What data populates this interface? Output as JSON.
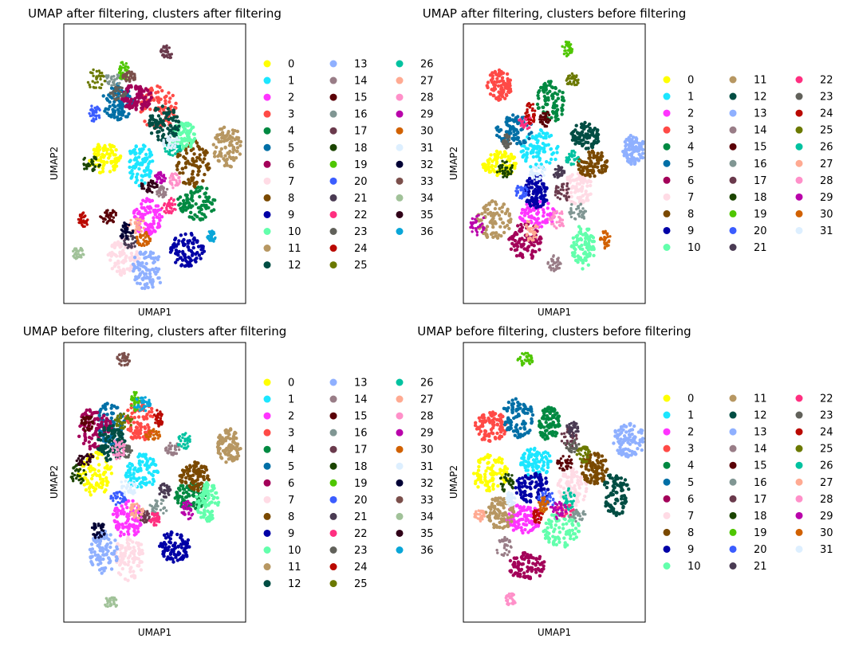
{
  "palette": [
    "#FFFF00",
    "#1CE6FF",
    "#FF34FF",
    "#FF4A46",
    "#008941",
    "#006FA6",
    "#A30059",
    "#FFDBE5",
    "#7A4900",
    "#0000A6",
    "#63FFAC",
    "#B79762",
    "#004D43",
    "#8FB0FF",
    "#997D87",
    "#5A0007",
    "#809693",
    "#6A3A4C",
    "#1B4400",
    "#4FC601",
    "#3B5DFF",
    "#4A3B53",
    "#FF2F80",
    "#61615A",
    "#BA0900",
    "#6B7900",
    "#00C2A0",
    "#FFAA92",
    "#FF90C9",
    "#B903AA",
    "#D16100",
    "#DDEFFF",
    "#000035",
    "#7B4F4B",
    "#A1C299",
    "#300018",
    "#0AA6D8"
  ],
  "chart_data": [
    {
      "type": "scatter",
      "title": "UMAP after filtering, clusters after filtering",
      "xlabel": "UMAP1",
      "ylabel": "UMAP2",
      "legend_entries": [
        "0",
        "1",
        "2",
        "3",
        "4",
        "5",
        "6",
        "7",
        "8",
        "9",
        "10",
        "11",
        "12",
        "13",
        "14",
        "15",
        "16",
        "17",
        "18",
        "19",
        "20",
        "21",
        "22",
        "23",
        "24",
        "25",
        "26",
        "27",
        "28",
        "29",
        "30",
        "31",
        "32",
        "33",
        "34",
        "35",
        "36"
      ],
      "legend_columns": 3,
      "legend_placement": "right",
      "clusters": [
        {
          "label": "0",
          "x": 0.22,
          "y": 0.52
        },
        {
          "label": "1",
          "x": 0.42,
          "y": 0.5
        },
        {
          "label": "2",
          "x": 0.46,
          "y": 0.31
        },
        {
          "label": "3",
          "x": 0.52,
          "y": 0.7
        },
        {
          "label": "4",
          "x": 0.73,
          "y": 0.36
        },
        {
          "label": "5",
          "x": 0.3,
          "y": 0.72
        },
        {
          "label": "6",
          "x": 0.4,
          "y": 0.74
        },
        {
          "label": "7",
          "x": 0.33,
          "y": 0.17
        },
        {
          "label": "8",
          "x": 0.71,
          "y": 0.5
        },
        {
          "label": "9",
          "x": 0.68,
          "y": 0.19
        },
        {
          "label": "10",
          "x": 0.66,
          "y": 0.6
        },
        {
          "label": "11",
          "x": 0.9,
          "y": 0.56
        },
        {
          "label": "12",
          "x": 0.55,
          "y": 0.64
        },
        {
          "label": "13",
          "x": 0.46,
          "y": 0.12
        },
        {
          "label": "14",
          "x": 0.54,
          "y": 0.4
        },
        {
          "label": "15",
          "x": 0.25,
          "y": 0.31
        },
        {
          "label": "16",
          "x": 0.27,
          "y": 0.8
        },
        {
          "label": "17",
          "x": 0.57,
          "y": 0.9
        },
        {
          "label": "18",
          "x": 0.15,
          "y": 0.5
        },
        {
          "label": "19",
          "x": 0.33,
          "y": 0.83
        },
        {
          "label": "20",
          "x": 0.17,
          "y": 0.68
        },
        {
          "label": "21",
          "x": 0.37,
          "y": 0.22
        },
        {
          "label": "22",
          "x": 0.58,
          "y": 0.35
        },
        {
          "label": "23",
          "x": 0.3,
          "y": 0.75
        },
        {
          "label": "24",
          "x": 0.11,
          "y": 0.3
        },
        {
          "label": "25",
          "x": 0.18,
          "y": 0.8
        },
        {
          "label": "26",
          "x": 0.6,
          "y": 0.55
        },
        {
          "label": "27",
          "x": 0.4,
          "y": 0.28
        },
        {
          "label": "28",
          "x": 0.61,
          "y": 0.44
        },
        {
          "label": "29",
          "x": 0.53,
          "y": 0.45
        },
        {
          "label": "30",
          "x": 0.44,
          "y": 0.23
        },
        {
          "label": "31",
          "x": 0.59,
          "y": 0.58
        },
        {
          "label": "32",
          "x": 0.34,
          "y": 0.26
        },
        {
          "label": "33",
          "x": 0.36,
          "y": 0.81
        },
        {
          "label": "34",
          "x": 0.08,
          "y": 0.18
        },
        {
          "label": "35",
          "x": 0.47,
          "y": 0.42
        },
        {
          "label": "36",
          "x": 0.81,
          "y": 0.24
        }
      ]
    },
    {
      "type": "scatter",
      "title": "UMAP after filtering, clusters before filtering",
      "xlabel": "UMAP1",
      "ylabel": "UMAP2",
      "legend_entries": [
        "0",
        "1",
        "2",
        "3",
        "4",
        "5",
        "6",
        "7",
        "8",
        "9",
        "10",
        "11",
        "12",
        "13",
        "14",
        "15",
        "16",
        "17",
        "18",
        "19",
        "20",
        "21",
        "22",
        "23",
        "24",
        "25",
        "26",
        "27",
        "28",
        "29",
        "30",
        "31"
      ],
      "legend_columns": 3,
      "legend_placement": "right",
      "clusters": [
        {
          "label": "0",
          "x": 0.2,
          "y": 0.5
        },
        {
          "label": "1",
          "x": 0.42,
          "y": 0.55
        },
        {
          "label": "2",
          "x": 0.41,
          "y": 0.32
        },
        {
          "label": "3",
          "x": 0.2,
          "y": 0.78
        },
        {
          "label": "4",
          "x": 0.48,
          "y": 0.72
        },
        {
          "label": "5",
          "x": 0.28,
          "y": 0.62
        },
        {
          "label": "6",
          "x": 0.34,
          "y": 0.22
        },
        {
          "label": "7",
          "x": 0.63,
          "y": 0.41
        },
        {
          "label": "8",
          "x": 0.71,
          "y": 0.5
        },
        {
          "label": "9",
          "x": 0.4,
          "y": 0.4
        },
        {
          "label": "10",
          "x": 0.66,
          "y": 0.2
        },
        {
          "label": "11",
          "x": 0.17,
          "y": 0.3
        },
        {
          "label": "12",
          "x": 0.67,
          "y": 0.6
        },
        {
          "label": "13",
          "x": 0.94,
          "y": 0.55
        },
        {
          "label": "14",
          "x": 0.5,
          "y": 0.14
        },
        {
          "label": "15",
          "x": 0.45,
          "y": 0.66
        },
        {
          "label": "16",
          "x": 0.63,
          "y": 0.33
        },
        {
          "label": "17",
          "x": 0.55,
          "y": 0.4
        },
        {
          "label": "18",
          "x": 0.23,
          "y": 0.48
        },
        {
          "label": "19",
          "x": 0.57,
          "y": 0.91
        },
        {
          "label": "20",
          "x": 0.32,
          "y": 0.4
        },
        {
          "label": "21",
          "x": 0.53,
          "y": 0.47
        },
        {
          "label": "22",
          "x": 0.34,
          "y": 0.65
        },
        {
          "label": "23",
          "x": 0.24,
          "y": 0.58
        },
        {
          "label": "24",
          "x": 0.37,
          "y": 0.68
        },
        {
          "label": "25",
          "x": 0.6,
          "y": 0.8
        },
        {
          "label": "26",
          "x": 0.6,
          "y": 0.52
        },
        {
          "label": "27",
          "x": 0.37,
          "y": 0.26
        },
        {
          "label": "28",
          "x": 0.52,
          "y": 0.3
        },
        {
          "label": "29",
          "x": 0.08,
          "y": 0.28
        },
        {
          "label": "30",
          "x": 0.78,
          "y": 0.23
        },
        {
          "label": "31",
          "x": 0.41,
          "y": 0.47
        }
      ]
    },
    {
      "type": "scatter",
      "title": "UMAP before filtering, clusters after filtering",
      "xlabel": "UMAP1",
      "ylabel": "UMAP2",
      "legend_entries": [
        "0",
        "1",
        "2",
        "3",
        "4",
        "5",
        "6",
        "7",
        "8",
        "9",
        "10",
        "11",
        "12",
        "13",
        "14",
        "15",
        "16",
        "17",
        "18",
        "19",
        "20",
        "21",
        "22",
        "23",
        "24",
        "25",
        "26",
        "27",
        "28",
        "29",
        "30",
        "31",
        "32",
        "33",
        "34",
        "35",
        "36"
      ],
      "legend_columns": 3,
      "legend_placement": "right",
      "clusters": [
        {
          "label": "0",
          "x": 0.17,
          "y": 0.53
        },
        {
          "label": "1",
          "x": 0.43,
          "y": 0.54
        },
        {
          "label": "2",
          "x": 0.35,
          "y": 0.37
        },
        {
          "label": "3",
          "x": 0.42,
          "y": 0.72
        },
        {
          "label": "4",
          "x": 0.7,
          "y": 0.45
        },
        {
          "label": "5",
          "x": 0.26,
          "y": 0.71
        },
        {
          "label": "6",
          "x": 0.17,
          "y": 0.69
        },
        {
          "label": "7",
          "x": 0.36,
          "y": 0.23
        },
        {
          "label": "8",
          "x": 0.72,
          "y": 0.52
        },
        {
          "label": "9",
          "x": 0.61,
          "y": 0.27
        },
        {
          "label": "10",
          "x": 0.79,
          "y": 0.43
        },
        {
          "label": "11",
          "x": 0.91,
          "y": 0.63
        },
        {
          "label": "12",
          "x": 0.26,
          "y": 0.64
        },
        {
          "label": "13",
          "x": 0.22,
          "y": 0.25
        },
        {
          "label": "14",
          "x": 0.6,
          "y": 0.62
        },
        {
          "label": "15",
          "x": 0.13,
          "y": 0.71
        },
        {
          "label": "16",
          "x": 0.52,
          "y": 0.41
        },
        {
          "label": "17",
          "x": 0.44,
          "y": 0.38
        },
        {
          "label": "18",
          "x": 0.08,
          "y": 0.53
        },
        {
          "label": "19",
          "x": 0.39,
          "y": 0.79
        },
        {
          "label": "20",
          "x": 0.3,
          "y": 0.44
        },
        {
          "label": "21",
          "x": 0.55,
          "y": 0.47
        },
        {
          "label": "22",
          "x": 0.5,
          "y": 0.37
        },
        {
          "label": "23",
          "x": 0.34,
          "y": 0.61
        },
        {
          "label": "24",
          "x": 0.52,
          "y": 0.73
        },
        {
          "label": "25",
          "x": 0.33,
          "y": 0.72
        },
        {
          "label": "26",
          "x": 0.66,
          "y": 0.65
        },
        {
          "label": "27",
          "x": 0.4,
          "y": 0.4
        },
        {
          "label": "28",
          "x": 0.3,
          "y": 0.62
        },
        {
          "label": "29",
          "x": 0.68,
          "y": 0.4
        },
        {
          "label": "30",
          "x": 0.49,
          "y": 0.67
        },
        {
          "label": "31",
          "x": 0.35,
          "y": 0.48
        },
        {
          "label": "32",
          "x": 0.19,
          "y": 0.33
        },
        {
          "label": "33",
          "x": 0.33,
          "y": 0.94
        },
        {
          "label": "34",
          "x": 0.26,
          "y": 0.07
        },
        {
          "label": "35",
          "x": 0.12,
          "y": 0.58
        },
        {
          "label": "36",
          "x": 0.43,
          "y": 0.78
        }
      ]
    },
    {
      "type": "scatter",
      "title": "UMAP before filtering, clusters before filtering",
      "xlabel": "UMAP1",
      "ylabel": "UMAP2",
      "legend_entries": [
        "0",
        "1",
        "2",
        "3",
        "4",
        "5",
        "6",
        "7",
        "8",
        "9",
        "10",
        "11",
        "12",
        "13",
        "14",
        "15",
        "16",
        "17",
        "18",
        "19",
        "20",
        "21",
        "22",
        "23",
        "24",
        "25",
        "26",
        "27",
        "28",
        "29",
        "30",
        "31"
      ],
      "legend_columns": 3,
      "legend_placement": "right",
      "clusters": [
        {
          "label": "0",
          "x": 0.15,
          "y": 0.53
        },
        {
          "label": "1",
          "x": 0.4,
          "y": 0.57
        },
        {
          "label": "2",
          "x": 0.33,
          "y": 0.37
        },
        {
          "label": "3",
          "x": 0.15,
          "y": 0.7
        },
        {
          "label": "4",
          "x": 0.47,
          "y": 0.71
        },
        {
          "label": "5",
          "x": 0.3,
          "y": 0.73
        },
        {
          "label": "6",
          "x": 0.35,
          "y": 0.2
        },
        {
          "label": "7",
          "x": 0.6,
          "y": 0.48
        },
        {
          "label": "8",
          "x": 0.72,
          "y": 0.55
        },
        {
          "label": "9",
          "x": 0.38,
          "y": 0.48
        },
        {
          "label": "10",
          "x": 0.54,
          "y": 0.33
        },
        {
          "label": "11",
          "x": 0.2,
          "y": 0.39
        },
        {
          "label": "12",
          "x": 0.84,
          "y": 0.46
        },
        {
          "label": "13",
          "x": 0.91,
          "y": 0.65
        },
        {
          "label": "14",
          "x": 0.22,
          "y": 0.27
        },
        {
          "label": "15",
          "x": 0.56,
          "y": 0.57
        },
        {
          "label": "16",
          "x": 0.63,
          "y": 0.38
        },
        {
          "label": "17",
          "x": 0.58,
          "y": 0.66
        },
        {
          "label": "18",
          "x": 0.24,
          "y": 0.5
        },
        {
          "label": "19",
          "x": 0.34,
          "y": 0.94
        },
        {
          "label": "20",
          "x": 0.46,
          "y": 0.44
        },
        {
          "label": "21",
          "x": 0.6,
          "y": 0.69
        },
        {
          "label": "22",
          "x": 0.56,
          "y": 0.4
        },
        {
          "label": "23",
          "x": 0.6,
          "y": 0.63
        },
        {
          "label": "24",
          "x": 0.41,
          "y": 0.38
        },
        {
          "label": "25",
          "x": 0.66,
          "y": 0.6
        },
        {
          "label": "26",
          "x": 0.58,
          "y": 0.44
        },
        {
          "label": "27",
          "x": 0.09,
          "y": 0.38
        },
        {
          "label": "28",
          "x": 0.26,
          "y": 0.08
        },
        {
          "label": "29",
          "x": 0.52,
          "y": 0.4
        },
        {
          "label": "30",
          "x": 0.44,
          "y": 0.42
        },
        {
          "label": "31",
          "x": 0.26,
          "y": 0.44
        }
      ]
    }
  ]
}
